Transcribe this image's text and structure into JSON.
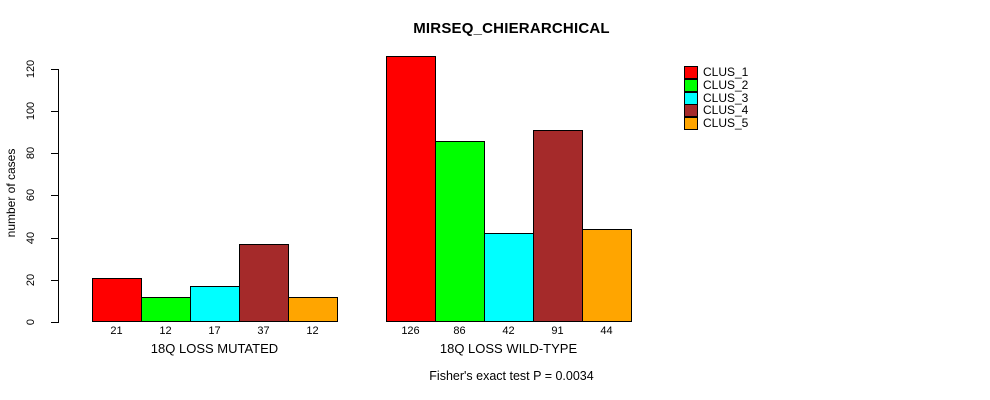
{
  "chart_data": {
    "type": "bar",
    "title": "MIRSEQ_CHIERARCHICAL",
    "ylabel": "number of cases",
    "xlabel": "",
    "annotation": "Fisher's exact test P = 0.0034",
    "ylim": [
      0,
      126
    ],
    "yticks": [
      0,
      20,
      40,
      60,
      80,
      100,
      120
    ],
    "grid": false,
    "legend_position": "top-right",
    "bar_borders": "#000000",
    "background": "#ffffff",
    "categories": [
      "18Q LOSS MUTATED",
      "18Q LOSS WILD-TYPE"
    ],
    "series": [
      {
        "name": "CLUS_1",
        "color": "#FF0000",
        "values": [
          21,
          126
        ]
      },
      {
        "name": "CLUS_2",
        "color": "#00FF00",
        "values": [
          12,
          86
        ]
      },
      {
        "name": "CLUS_3",
        "color": "#00FFFF",
        "values": [
          17,
          42
        ]
      },
      {
        "name": "CLUS_4",
        "color": "#A52A2A",
        "values": [
          37,
          91
        ]
      },
      {
        "name": "CLUS_5",
        "color": "#FFA500",
        "values": [
          12,
          44
        ]
      }
    ],
    "value_labels_shown": true
  }
}
